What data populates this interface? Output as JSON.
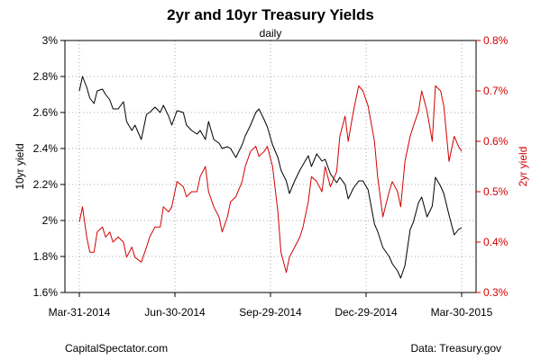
{
  "chart_data": {
    "type": "line",
    "title": "2yr and 10yr Treasury Yields",
    "subtitle": "daily",
    "left_axis": {
      "label": "10yr yield",
      "min": 1.6,
      "max": 3.0,
      "ticks": [
        1.6,
        1.8,
        2.0,
        2.2,
        2.4,
        2.6,
        2.8,
        3.0
      ],
      "tick_labels": [
        "1.6%",
        "1.8%",
        "2%",
        "2.2%",
        "2.4%",
        "2.6%",
        "2.8%",
        "3%"
      ]
    },
    "right_axis": {
      "label": "2yr yield",
      "min": 0.3,
      "max": 0.8,
      "ticks": [
        0.3,
        0.4,
        0.5,
        0.6,
        0.7,
        0.8
      ],
      "tick_labels": [
        "0.3%",
        "0.4%",
        "0.5%",
        "0.6%",
        "0.7%",
        "0.8%"
      ],
      "color": "#d40000"
    },
    "x_axis": {
      "start": "2014-03-31",
      "end": "2015-03-30",
      "tick_dates": [
        "2014-03-31",
        "2014-06-30",
        "2014-09-29",
        "2014-12-29",
        "2015-03-30"
      ],
      "tick_labels": [
        "Mar-31-2014",
        "Jun-30-2014",
        "Sep-29-2014",
        "Dec-29-2014",
        "Mar-30-2015"
      ]
    },
    "grid": true,
    "series": [
      {
        "axis": "left",
        "color": "#000000",
        "x": [
          "2014-03-31",
          "2014-04-03",
          "2014-04-07",
          "2014-04-10",
          "2014-04-14",
          "2014-04-17",
          "2014-04-22",
          "2014-04-25",
          "2014-04-29",
          "2014-05-02",
          "2014-05-07",
          "2014-05-12",
          "2014-05-15",
          "2014-05-20",
          "2014-05-23",
          "2014-05-29",
          "2014-06-03",
          "2014-06-06",
          "2014-06-11",
          "2014-06-16",
          "2014-06-19",
          "2014-06-24",
          "2014-06-27",
          "2014-07-02",
          "2014-07-08",
          "2014-07-11",
          "2014-07-16",
          "2014-07-21",
          "2014-07-24",
          "2014-07-29",
          "2014-08-01",
          "2014-08-06",
          "2014-08-11",
          "2014-08-14",
          "2014-08-19",
          "2014-08-22",
          "2014-08-27",
          "2014-09-02",
          "2014-09-05",
          "2014-09-10",
          "2014-09-15",
          "2014-09-18",
          "2014-09-23",
          "2014-09-26",
          "2014-10-01",
          "2014-10-06",
          "2014-10-09",
          "2014-10-14",
          "2014-10-17",
          "2014-10-22",
          "2014-10-27",
          "2014-10-30",
          "2014-11-04",
          "2014-11-07",
          "2014-11-12",
          "2014-11-17",
          "2014-11-20",
          "2014-11-25",
          "2014-12-01",
          "2014-12-04",
          "2014-12-09",
          "2014-12-12",
          "2014-12-17",
          "2014-12-22",
          "2014-12-26",
          "2014-12-31",
          "2015-01-06",
          "2015-01-09",
          "2015-01-14",
          "2015-01-20",
          "2015-01-23",
          "2015-01-28",
          "2015-01-31",
          "2015-02-04",
          "2015-02-09",
          "2015-02-12",
          "2015-02-17",
          "2015-02-20",
          "2015-02-25",
          "2015-03-02",
          "2015-03-05",
          "2015-03-10",
          "2015-03-13",
          "2015-03-18",
          "2015-03-23",
          "2015-03-27",
          "2015-03-30"
        ],
        "values": [
          2.72,
          2.8,
          2.74,
          2.68,
          2.65,
          2.72,
          2.73,
          2.7,
          2.67,
          2.62,
          2.62,
          2.66,
          2.55,
          2.5,
          2.53,
          2.45,
          2.59,
          2.6,
          2.63,
          2.6,
          2.64,
          2.58,
          2.53,
          2.61,
          2.6,
          2.53,
          2.5,
          2.48,
          2.5,
          2.45,
          2.55,
          2.45,
          2.43,
          2.4,
          2.41,
          2.4,
          2.35,
          2.42,
          2.47,
          2.53,
          2.6,
          2.62,
          2.56,
          2.52,
          2.42,
          2.35,
          2.28,
          2.22,
          2.15,
          2.22,
          2.28,
          2.31,
          2.36,
          2.3,
          2.37,
          2.33,
          2.34,
          2.26,
          2.21,
          2.24,
          2.2,
          2.12,
          2.18,
          2.22,
          2.22,
          2.17,
          1.98,
          1.94,
          1.85,
          1.8,
          1.76,
          1.72,
          1.68,
          1.75,
          1.95,
          1.99,
          2.1,
          2.13,
          2.02,
          2.08,
          2.24,
          2.19,
          2.15,
          2.03,
          1.92,
          1.95,
          1.96
        ]
      },
      {
        "axis": "right",
        "color": "#d40000",
        "x": [
          "2014-03-31",
          "2014-04-03",
          "2014-04-07",
          "2014-04-10",
          "2014-04-14",
          "2014-04-17",
          "2014-04-22",
          "2014-04-25",
          "2014-04-29",
          "2014-05-02",
          "2014-05-07",
          "2014-05-12",
          "2014-05-15",
          "2014-05-20",
          "2014-05-23",
          "2014-05-29",
          "2014-06-03",
          "2014-06-06",
          "2014-06-11",
          "2014-06-16",
          "2014-06-19",
          "2014-06-24",
          "2014-06-27",
          "2014-07-02",
          "2014-07-08",
          "2014-07-11",
          "2014-07-16",
          "2014-07-21",
          "2014-07-24",
          "2014-07-29",
          "2014-08-01",
          "2014-08-06",
          "2014-08-11",
          "2014-08-14",
          "2014-08-19",
          "2014-08-22",
          "2014-08-27",
          "2014-09-02",
          "2014-09-05",
          "2014-09-10",
          "2014-09-15",
          "2014-09-18",
          "2014-09-23",
          "2014-09-26",
          "2014-10-01",
          "2014-10-06",
          "2014-10-09",
          "2014-10-14",
          "2014-10-17",
          "2014-10-22",
          "2014-10-27",
          "2014-10-30",
          "2014-11-04",
          "2014-11-07",
          "2014-11-12",
          "2014-11-17",
          "2014-11-20",
          "2014-11-25",
          "2014-12-01",
          "2014-12-04",
          "2014-12-09",
          "2014-12-12",
          "2014-12-17",
          "2014-12-22",
          "2014-12-26",
          "2014-12-31",
          "2015-01-06",
          "2015-01-09",
          "2015-01-14",
          "2015-01-20",
          "2015-01-23",
          "2015-01-28",
          "2015-01-31",
          "2015-02-04",
          "2015-02-09",
          "2015-02-12",
          "2015-02-17",
          "2015-02-20",
          "2015-02-25",
          "2015-03-02",
          "2015-03-05",
          "2015-03-10",
          "2015-03-13",
          "2015-03-18",
          "2015-03-23",
          "2015-03-27",
          "2015-03-30"
        ],
        "values": [
          0.44,
          0.47,
          0.41,
          0.38,
          0.38,
          0.42,
          0.43,
          0.41,
          0.42,
          0.4,
          0.41,
          0.4,
          0.37,
          0.39,
          0.37,
          0.36,
          0.39,
          0.41,
          0.43,
          0.43,
          0.47,
          0.46,
          0.47,
          0.52,
          0.51,
          0.49,
          0.5,
          0.5,
          0.53,
          0.55,
          0.5,
          0.47,
          0.45,
          0.42,
          0.45,
          0.48,
          0.49,
          0.52,
          0.55,
          0.58,
          0.59,
          0.57,
          0.58,
          0.59,
          0.55,
          0.46,
          0.38,
          0.34,
          0.37,
          0.39,
          0.41,
          0.43,
          0.48,
          0.53,
          0.52,
          0.5,
          0.55,
          0.51,
          0.54,
          0.61,
          0.65,
          0.6,
          0.66,
          0.71,
          0.7,
          0.67,
          0.6,
          0.53,
          0.45,
          0.5,
          0.52,
          0.5,
          0.47,
          0.56,
          0.61,
          0.63,
          0.66,
          0.7,
          0.66,
          0.6,
          0.71,
          0.7,
          0.67,
          0.56,
          0.61,
          0.59,
          0.58
        ]
      }
    ]
  },
  "footer": {
    "left": "CapitalSpectator.com",
    "right": "Data: Treasury.gov"
  }
}
